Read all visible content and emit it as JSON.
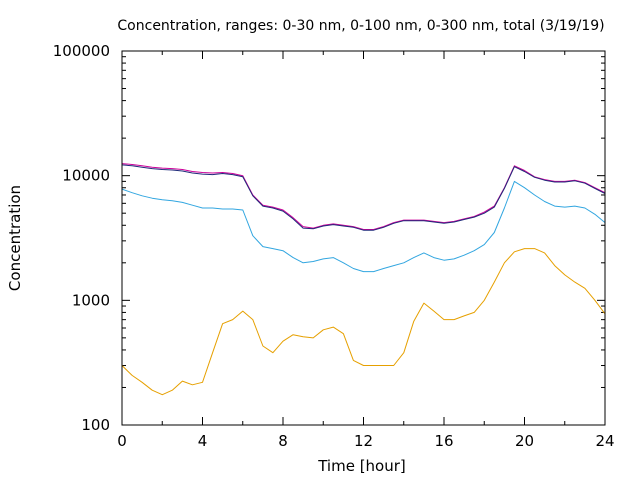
{
  "chart_data": {
    "type": "line",
    "title": "Concentration, ranges: 0-30 nm, 0-100 nm, 0-300 nm, total (3/19/19)",
    "xlabel": "Time [hour]",
    "ylabel": "Concentration",
    "xlim": [
      0,
      24
    ],
    "ylim": [
      100,
      100000
    ],
    "yscale": "log",
    "grid": false,
    "legend": "none",
    "x_ticks": [
      0,
      4,
      8,
      12,
      16,
      20,
      24
    ],
    "x_tick_labels": [
      "0",
      "4",
      "8",
      "12",
      "16",
      "20",
      "24"
    ],
    "y_ticks": [
      100,
      1000,
      10000,
      100000
    ],
    "y_tick_labels": [
      "100",
      "1000",
      "10000",
      "100000"
    ],
    "x": [
      0,
      0.5,
      1,
      1.5,
      2,
      2.5,
      3,
      3.5,
      4,
      4.5,
      5,
      5.5,
      6,
      6.5,
      7,
      7.5,
      8,
      8.5,
      9,
      9.5,
      10,
      10.5,
      11,
      11.5,
      12,
      12.5,
      13,
      13.5,
      14,
      14.5,
      15,
      15.5,
      16,
      16.5,
      17,
      17.5,
      18,
      18.5,
      19,
      19.5,
      20,
      20.5,
      21,
      21.5,
      22,
      22.5,
      23,
      23.5,
      24
    ],
    "series": [
      {
        "color": "#e6a000",
        "values": [
          300,
          250,
          220,
          190,
          175,
          190,
          225,
          210,
          220,
          380,
          650,
          700,
          820,
          700,
          430,
          380,
          470,
          530,
          510,
          500,
          580,
          610,
          540,
          330,
          300,
          300,
          300,
          300,
          380,
          680,
          950,
          820,
          700,
          700,
          750,
          800,
          1000,
          1400,
          2000,
          2450,
          2600,
          2600,
          2400,
          1900,
          1600,
          1400,
          1250,
          1000,
          780
        ]
      },
      {
        "color": "#32a6e0",
        "values": [
          7800,
          7300,
          6900,
          6600,
          6400,
          6300,
          6100,
          5800,
          5500,
          5500,
          5400,
          5400,
          5300,
          3300,
          2700,
          2600,
          2500,
          2200,
          2000,
          2050,
          2150,
          2200,
          2000,
          1800,
          1700,
          1700,
          1800,
          1900,
          2000,
          2200,
          2400,
          2200,
          2100,
          2150,
          2300,
          2500,
          2800,
          3500,
          5500,
          9000,
          8000,
          7000,
          6200,
          5700,
          5600,
          5700,
          5500,
          4900,
          4200
        ]
      },
      {
        "color": "#cc0099",
        "values": [
          12500,
          12300,
          12000,
          11700,
          11500,
          11400,
          11200,
          10800,
          10600,
          10500,
          10600,
          10400,
          10000,
          7000,
          5800,
          5600,
          5300,
          4600,
          3900,
          3800,
          4000,
          4100,
          4000,
          3900,
          3700,
          3700,
          3900,
          4200,
          4400,
          4400,
          4400,
          4300,
          4200,
          4300,
          4500,
          4700,
          5100,
          5700,
          8000,
          12000,
          11000,
          9800,
          9300,
          9000,
          9000,
          9200,
          8800,
          8000,
          7300
        ]
      },
      {
        "color": "#1f2a7a",
        "values": [
          12200,
          12000,
          11700,
          11400,
          11200,
          11100,
          10900,
          10500,
          10300,
          10200,
          10400,
          10200,
          9800,
          6900,
          5700,
          5500,
          5200,
          4500,
          3800,
          3750,
          3950,
          4050,
          3950,
          3850,
          3650,
          3650,
          3850,
          4150,
          4350,
          4350,
          4350,
          4250,
          4150,
          4250,
          4450,
          4650,
          5000,
          5600,
          7900,
          11800,
          10800,
          9700,
          9200,
          8900,
          8900,
          9100,
          8700,
          7900,
          7200
        ]
      }
    ]
  }
}
